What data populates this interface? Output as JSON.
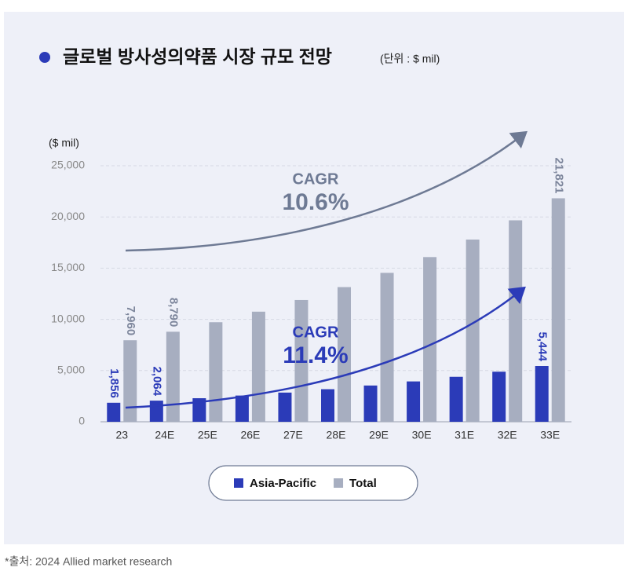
{
  "chart_data": {
    "type": "bar",
    "title": "글로벌 방사성의약품 시장 규모 전망",
    "subtitle": "(단위 : $ mil)",
    "y_label": "($ mil)",
    "source": "*출처: 2024 Allied market research",
    "categories": [
      "23",
      "24E",
      "25E",
      "26E",
      "27E",
      "28E",
      "29E",
      "30E",
      "31E",
      "32E",
      "33E"
    ],
    "series": [
      {
        "name": "Asia-Pacific",
        "color": "#2b3bb8",
        "values": [
          1856,
          2064,
          2300,
          2560,
          2850,
          3180,
          3540,
          3940,
          4390,
          4890,
          5444
        ],
        "value_labels": [
          "1,856",
          "2,064",
          null,
          null,
          null,
          null,
          null,
          null,
          null,
          null,
          "5,444"
        ]
      },
      {
        "name": "Total",
        "color": "#a7aec0",
        "values": [
          7960,
          8790,
          9720,
          10750,
          11890,
          13150,
          14540,
          16080,
          17790,
          19670,
          21821
        ],
        "value_labels": [
          "7,960",
          "8,790",
          null,
          null,
          null,
          null,
          null,
          null,
          null,
          null,
          "21,821"
        ]
      }
    ],
    "annotations": [
      {
        "label": "CAGR",
        "value": "10.6%"
      },
      {
        "label": "CAGR",
        "value": "11.4%"
      }
    ],
    "ylim": [
      0,
      25000
    ],
    "yticks": [
      0,
      {
        "value": 5000,
        "label": "5,000"
      },
      {
        "value": 10000,
        "label": "10,000"
      },
      {
        "value": 15000,
        "label": "15,000"
      },
      {
        "value": 20000,
        "label": "20,000"
      },
      {
        "value": 25000,
        "label": "25,000"
      }
    ],
    "grid": true
  }
}
